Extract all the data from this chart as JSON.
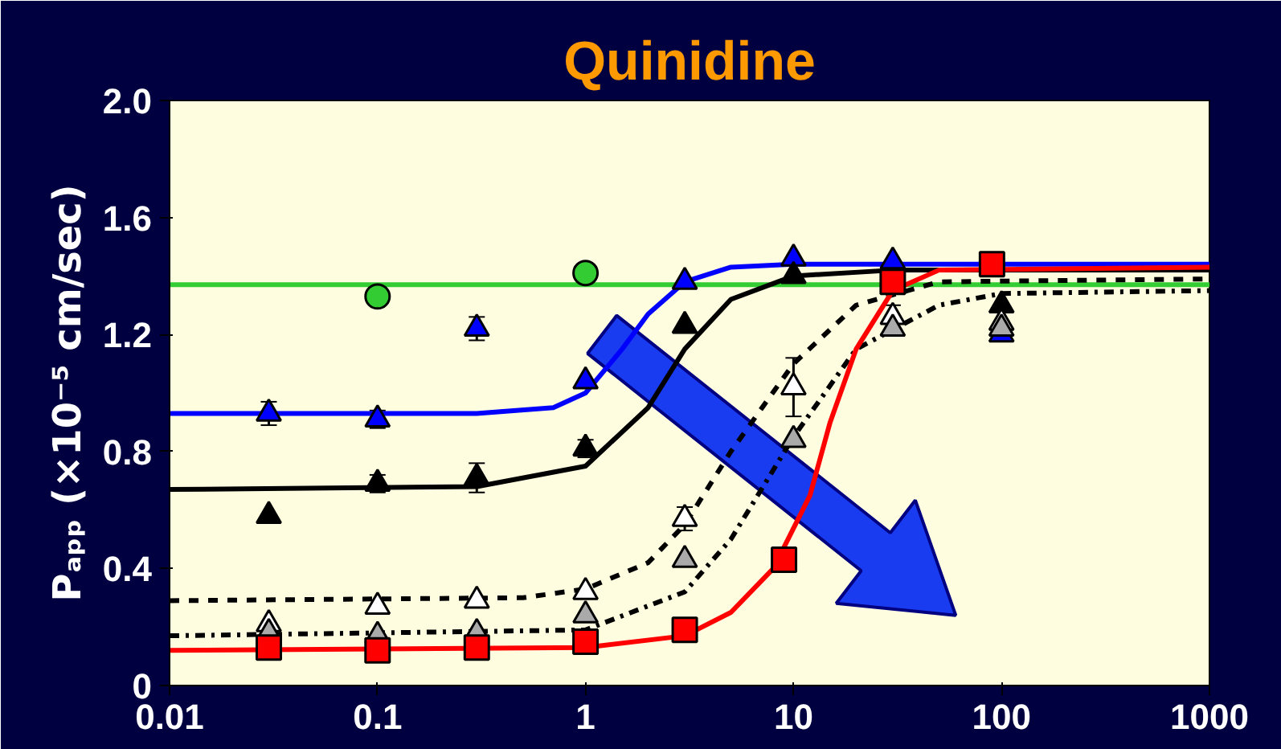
{
  "chart_data": {
    "type": "scatter",
    "title": "Quinidine",
    "ylabel": "Pₐₚₚ (×10⁻⁵ cm/sec)",
    "log": "x",
    "grid": false,
    "xlim": [
      0.01,
      1000
    ],
    "xticks": [
      0.01,
      0.1,
      1,
      10,
      100,
      1000
    ],
    "ylim": [
      0,
      2.0
    ],
    "yticks": [
      0,
      0.4,
      0.8,
      1.2,
      1.6,
      {
        "value": 2.0,
        "label": "2.0"
      }
    ],
    "series": [
      {
        "type": "line",
        "color": "#33cc33",
        "line_style": "solid",
        "x": [
          0.01,
          1000
        ],
        "values": [
          1.37,
          1.37
        ]
      },
      {
        "type": "line",
        "color": "#0000ff",
        "line_style": "solid",
        "x": [
          0.01,
          0.3,
          0.7,
          1,
          1.5,
          2,
          3,
          5,
          10,
          1000
        ],
        "values": [
          0.93,
          0.93,
          0.95,
          1.0,
          1.15,
          1.27,
          1.38,
          1.43,
          1.44,
          1.44
        ]
      },
      {
        "type": "line",
        "color": "#000000",
        "line_style": "solid",
        "x": [
          0.01,
          0.3,
          1,
          2,
          3,
          5,
          10,
          30,
          1000
        ],
        "values": [
          0.67,
          0.68,
          0.75,
          0.95,
          1.15,
          1.32,
          1.4,
          1.42,
          1.42
        ]
      },
      {
        "type": "line",
        "color": "#000000",
        "line_style": "dashed",
        "x": [
          0.01,
          0.5,
          1,
          2,
          3,
          5,
          10,
          20,
          50,
          1000
        ],
        "values": [
          0.29,
          0.3,
          0.33,
          0.42,
          0.55,
          0.8,
          1.1,
          1.3,
          1.38,
          1.39
        ]
      },
      {
        "type": "line",
        "color": "#000000",
        "line_style": "dashdot",
        "x": [
          0.01,
          1,
          3,
          5,
          10,
          20,
          50,
          100,
          1000
        ],
        "values": [
          0.17,
          0.19,
          0.32,
          0.5,
          0.85,
          1.15,
          1.3,
          1.34,
          1.35
        ]
      },
      {
        "type": "line",
        "color": "#ff0000",
        "line_style": "solid",
        "x": [
          0.01,
          1,
          3,
          5,
          8,
          12,
          15,
          20,
          30,
          50,
          1000
        ],
        "values": [
          0.12,
          0.13,
          0.17,
          0.25,
          0.4,
          0.65,
          0.9,
          1.15,
          1.35,
          1.42,
          1.43
        ]
      },
      {
        "marker": "circle",
        "color": "#33cc33",
        "x": [
          0.1,
          1
        ],
        "values": [
          1.33,
          1.41
        ],
        "errors": [
          0.03,
          0.03
        ]
      },
      {
        "marker": "triangle",
        "color": "#0000ff",
        "x": [
          0.03,
          0.1,
          0.3,
          1,
          3,
          10,
          30,
          100
        ],
        "values": [
          0.93,
          0.91,
          1.22,
          1.04,
          1.38,
          1.46,
          1.45,
          1.2
        ],
        "errors": [
          0.04,
          0.03,
          0.04,
          null,
          null,
          null,
          null,
          null
        ]
      },
      {
        "marker": "triangle",
        "color": "#000000",
        "x": [
          0.03,
          0.1,
          0.3,
          1,
          3,
          10,
          30,
          100
        ],
        "values": [
          0.58,
          0.69,
          0.71,
          0.81,
          1.23,
          1.4,
          null,
          1.3
        ],
        "errors": [
          null,
          0.03,
          0.05,
          0.03,
          null,
          null,
          null,
          null
        ]
      },
      {
        "marker": "triangle",
        "color": "#ffffff",
        "x": [
          0.03,
          0.1,
          0.3,
          1,
          3,
          10,
          30,
          100
        ],
        "values": [
          0.21,
          0.27,
          0.29,
          0.32,
          0.57,
          1.02,
          1.26,
          1.24
        ],
        "errors": [
          null,
          null,
          null,
          null,
          0.04,
          0.1,
          0.04,
          null
        ]
      },
      {
        "marker": "triangle",
        "color": "#aaaaaa",
        "x": [
          0.03,
          0.1,
          0.3,
          1,
          3,
          10,
          30,
          100
        ],
        "values": [
          0.18,
          0.17,
          0.18,
          0.24,
          0.43,
          0.84,
          1.22,
          1.22
        ]
      },
      {
        "marker": "square",
        "color": "#ff0000",
        "x": [
          0.03,
          0.1,
          0.3,
          1,
          3,
          9,
          30,
          90
        ],
        "values": [
          0.13,
          0.12,
          0.13,
          0.15,
          0.19,
          0.43,
          1.38,
          1.44
        ]
      }
    ]
  }
}
